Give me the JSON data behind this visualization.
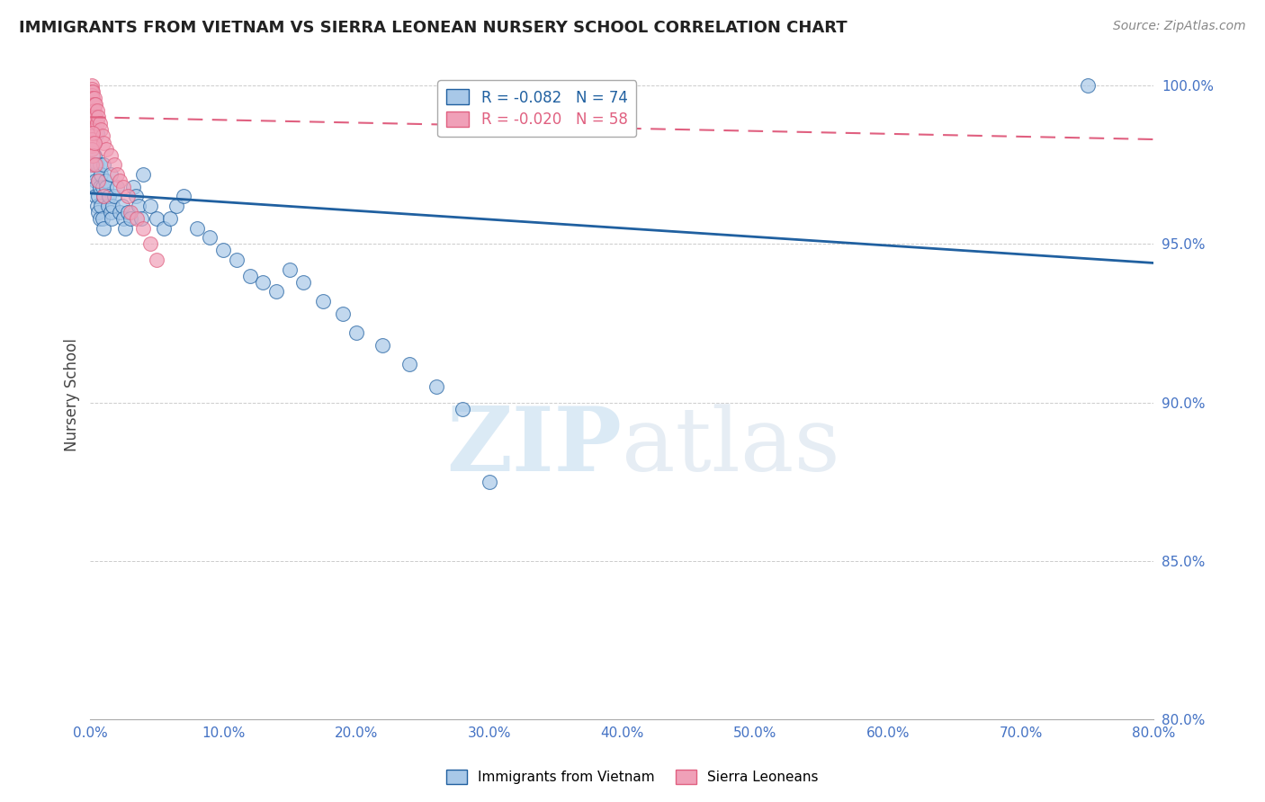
{
  "title": "IMMIGRANTS FROM VIETNAM VS SIERRA LEONEAN NURSERY SCHOOL CORRELATION CHART",
  "source": "Source: ZipAtlas.com",
  "xlabel": "",
  "ylabel": "Nursery School",
  "legend_label1": "Immigrants from Vietnam",
  "legend_label2": "Sierra Leoneans",
  "r1": -0.082,
  "n1": 74,
  "r2": -0.02,
  "n2": 58,
  "color_blue": "#A8C8E8",
  "color_pink": "#F0A0B8",
  "color_blue_line": "#2060A0",
  "color_pink_line": "#E06080",
  "watermark_zip": "ZIP",
  "watermark_atlas": "atlas",
  "xlim": [
    0.0,
    0.8
  ],
  "ylim": [
    0.8,
    1.005
  ],
  "xticks": [
    0.0,
    0.1,
    0.2,
    0.3,
    0.4,
    0.5,
    0.6,
    0.7,
    0.8
  ],
  "yticks": [
    0.8,
    0.85,
    0.9,
    0.95,
    1.0
  ],
  "blue_trend_x0": 0.0,
  "blue_trend_y0": 0.966,
  "blue_trend_x1": 0.8,
  "blue_trend_y1": 0.944,
  "pink_trend_x0": 0.0,
  "pink_trend_y0": 0.99,
  "pink_trend_x1": 0.8,
  "pink_trend_y1": 0.983,
  "blue_x": [
    0.001,
    0.001,
    0.001,
    0.002,
    0.002,
    0.002,
    0.003,
    0.003,
    0.003,
    0.004,
    0.004,
    0.004,
    0.004,
    0.005,
    0.005,
    0.005,
    0.006,
    0.006,
    0.006,
    0.007,
    0.007,
    0.007,
    0.008,
    0.008,
    0.009,
    0.009,
    0.01,
    0.01,
    0.01,
    0.011,
    0.012,
    0.013,
    0.014,
    0.015,
    0.015,
    0.016,
    0.017,
    0.018,
    0.02,
    0.022,
    0.024,
    0.025,
    0.026,
    0.028,
    0.03,
    0.032,
    0.034,
    0.036,
    0.038,
    0.04,
    0.045,
    0.05,
    0.055,
    0.06,
    0.065,
    0.07,
    0.08,
    0.09,
    0.1,
    0.11,
    0.12,
    0.13,
    0.14,
    0.15,
    0.16,
    0.175,
    0.19,
    0.2,
    0.22,
    0.24,
    0.26,
    0.28,
    0.3,
    0.75
  ],
  "blue_y": [
    0.998,
    0.996,
    0.994,
    0.992,
    0.989,
    0.985,
    0.982,
    0.978,
    0.975,
    0.972,
    0.97,
    0.968,
    0.965,
    0.985,
    0.975,
    0.962,
    0.97,
    0.965,
    0.96,
    0.975,
    0.968,
    0.958,
    0.972,
    0.962,
    0.968,
    0.958,
    0.975,
    0.965,
    0.955,
    0.97,
    0.968,
    0.962,
    0.965,
    0.972,
    0.96,
    0.958,
    0.962,
    0.965,
    0.968,
    0.96,
    0.962,
    0.958,
    0.955,
    0.96,
    0.958,
    0.968,
    0.965,
    0.962,
    0.958,
    0.972,
    0.962,
    0.958,
    0.955,
    0.958,
    0.962,
    0.965,
    0.955,
    0.952,
    0.948,
    0.945,
    0.94,
    0.938,
    0.935,
    0.942,
    0.938,
    0.932,
    0.928,
    0.922,
    0.918,
    0.912,
    0.905,
    0.898,
    0.875,
    1.0
  ],
  "pink_x": [
    0.001,
    0.001,
    0.001,
    0.001,
    0.001,
    0.001,
    0.001,
    0.001,
    0.001,
    0.001,
    0.001,
    0.001,
    0.001,
    0.001,
    0.001,
    0.001,
    0.001,
    0.001,
    0.001,
    0.001,
    0.002,
    0.002,
    0.002,
    0.002,
    0.002,
    0.003,
    0.003,
    0.003,
    0.003,
    0.004,
    0.004,
    0.005,
    0.005,
    0.006,
    0.007,
    0.008,
    0.009,
    0.01,
    0.012,
    0.015,
    0.018,
    0.02,
    0.022,
    0.025,
    0.028,
    0.03,
    0.035,
    0.04,
    0.045,
    0.05,
    0.001,
    0.001,
    0.002,
    0.002,
    0.003,
    0.004,
    0.006,
    0.01
  ],
  "pink_y": [
    1.0,
    0.999,
    0.998,
    0.997,
    0.996,
    0.995,
    0.994,
    0.993,
    0.992,
    0.991,
    0.99,
    0.989,
    0.988,
    0.987,
    0.986,
    0.985,
    0.984,
    0.983,
    0.982,
    0.981,
    0.998,
    0.996,
    0.994,
    0.992,
    0.99,
    0.996,
    0.994,
    0.992,
    0.99,
    0.994,
    0.99,
    0.992,
    0.988,
    0.99,
    0.988,
    0.986,
    0.984,
    0.982,
    0.98,
    0.978,
    0.975,
    0.972,
    0.97,
    0.968,
    0.965,
    0.96,
    0.958,
    0.955,
    0.95,
    0.945,
    0.98,
    0.975,
    0.985,
    0.978,
    0.982,
    0.975,
    0.97,
    0.965
  ]
}
